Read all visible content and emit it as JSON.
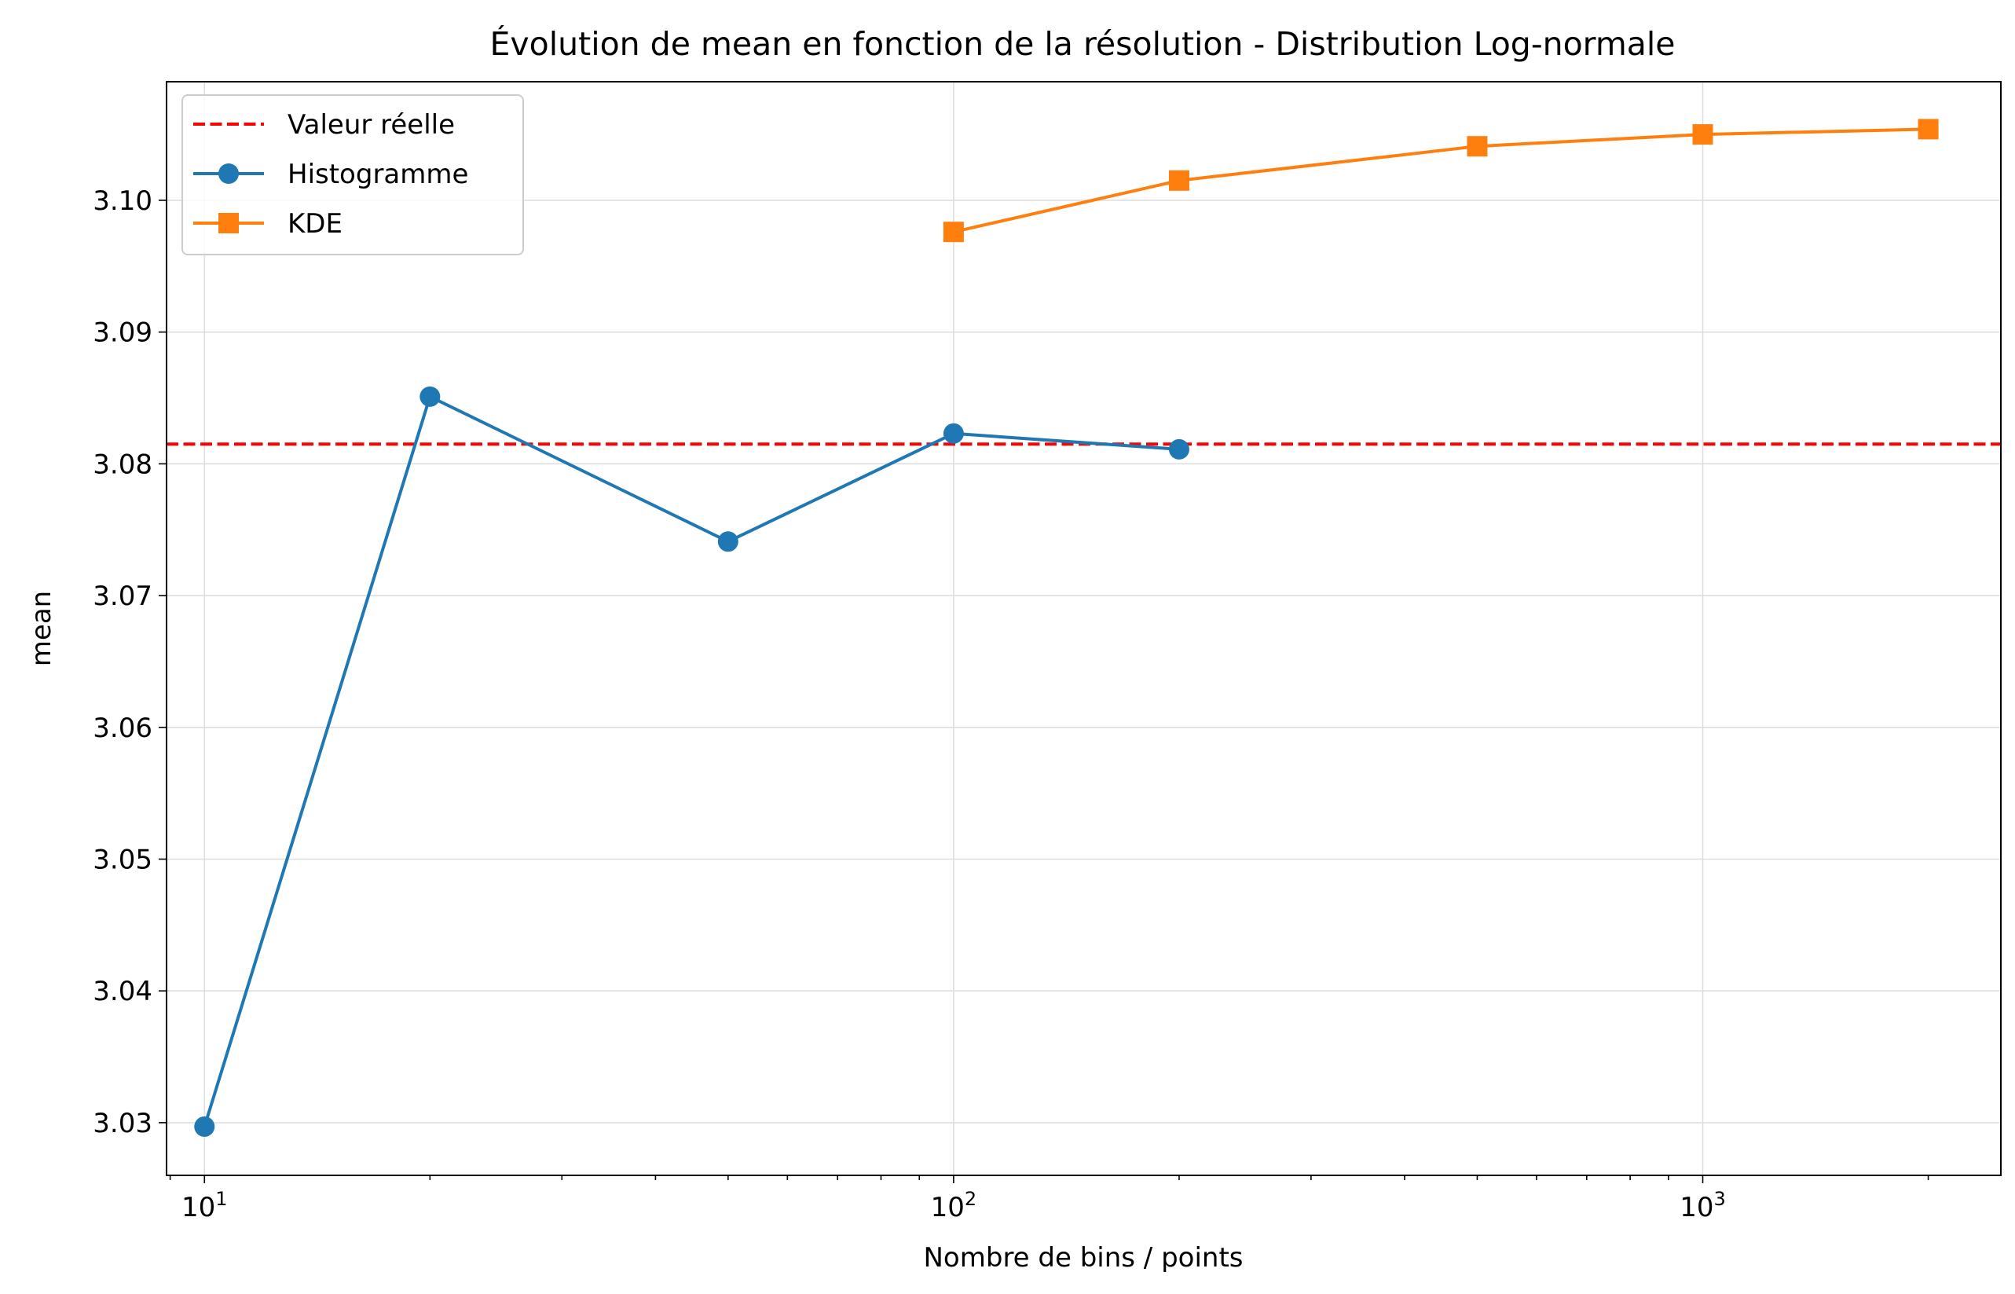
{
  "chart_data": {
    "type": "line",
    "title": "Évolution de mean en fonction de la résolution - Distribution Log-normale",
    "xlabel": "Nombre de bins / points",
    "ylabel": "mean",
    "xscale": "log",
    "xlim": [
      8.9,
      2500
    ],
    "ylim": [
      3.026,
      3.109
    ],
    "grid": true,
    "legend_position": "upper-left",
    "x_ticks": [
      {
        "value": 10,
        "base": "10",
        "exp": "1"
      },
      {
        "value": 100,
        "base": "10",
        "exp": "2"
      },
      {
        "value": 1000,
        "base": "10",
        "exp": "3"
      }
    ],
    "y_ticks": [
      3.03,
      3.04,
      3.05,
      3.06,
      3.07,
      3.08,
      3.09,
      3.1
    ],
    "y_tick_labels": [
      "3.03",
      "3.04",
      "3.05",
      "3.06",
      "3.07",
      "3.08",
      "3.09",
      "3.10"
    ],
    "reference_line": {
      "name": "Valeur réelle",
      "value": 3.0815,
      "color": "#ff0000",
      "style": "dashed"
    },
    "series": [
      {
        "name": "Histogramme",
        "color": "#1f77b4",
        "marker": "circle",
        "x": [
          10,
          20,
          50,
          100,
          200
        ],
        "y": [
          3.0297,
          3.0851,
          3.0741,
          3.0823,
          3.0811
        ]
      },
      {
        "name": "KDE",
        "color": "#ff7f0e",
        "marker": "square",
        "x": [
          100,
          200,
          500,
          1000,
          2000
        ],
        "y": [
          3.0976,
          3.1015,
          3.1041,
          3.105,
          3.1054
        ]
      }
    ]
  }
}
